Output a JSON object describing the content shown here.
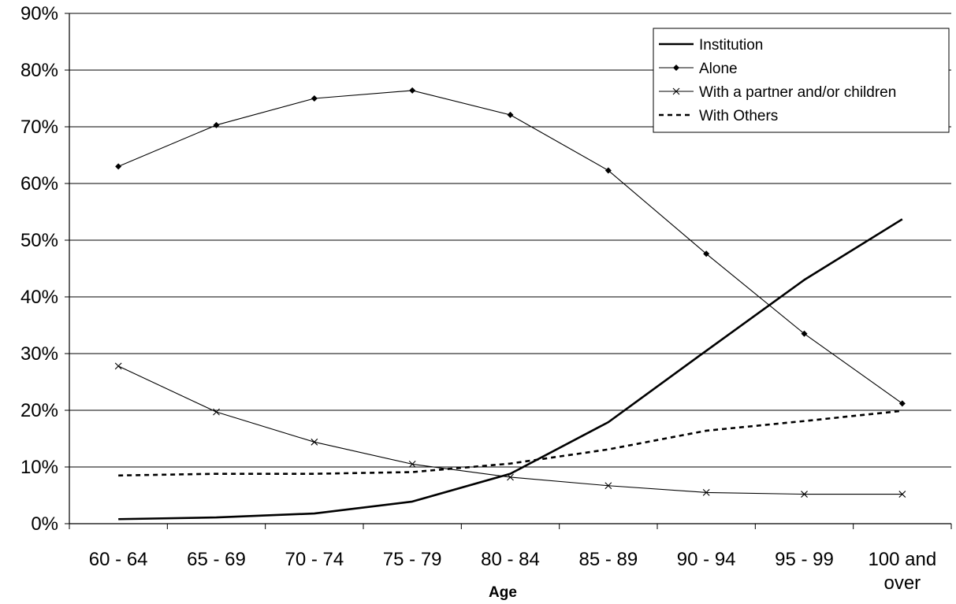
{
  "chart_data": {
    "type": "line",
    "title": "",
    "xlabel": "Age",
    "ylabel": "",
    "categories": [
      "60 - 64",
      "65 - 69",
      "70 - 74",
      "75 - 79",
      "80 - 84",
      "85 - 89",
      "90 - 94",
      "95 - 99",
      "100 and over"
    ],
    "ylim": [
      0,
      90
    ],
    "yticks": [
      "0%",
      "10%",
      "20%",
      "30%",
      "40%",
      "50%",
      "60%",
      "70%",
      "80%",
      "90%"
    ],
    "grid": "horizontal",
    "legend_position": "top-right",
    "series": [
      {
        "name": "Institution",
        "style": "thick-solid",
        "marker": "none",
        "values": [
          0.8,
          1.1,
          1.8,
          3.9,
          8.8,
          17.9,
          30.5,
          43.0,
          53.7
        ]
      },
      {
        "name": "Alone",
        "style": "thin-solid",
        "marker": "diamond",
        "values": [
          63.0,
          70.3,
          75.0,
          76.4,
          72.1,
          62.3,
          47.6,
          33.5,
          21.2
        ]
      },
      {
        "name": "With a partner and/or children",
        "style": "thin-solid",
        "marker": "x",
        "values": [
          27.8,
          19.7,
          14.4,
          10.5,
          8.2,
          6.7,
          5.5,
          5.2,
          5.2
        ]
      },
      {
        "name": "With Others",
        "style": "dashed",
        "marker": "none",
        "values": [
          8.5,
          8.8,
          8.8,
          9.1,
          10.6,
          13.1,
          16.4,
          18.1,
          19.9
        ]
      }
    ]
  }
}
